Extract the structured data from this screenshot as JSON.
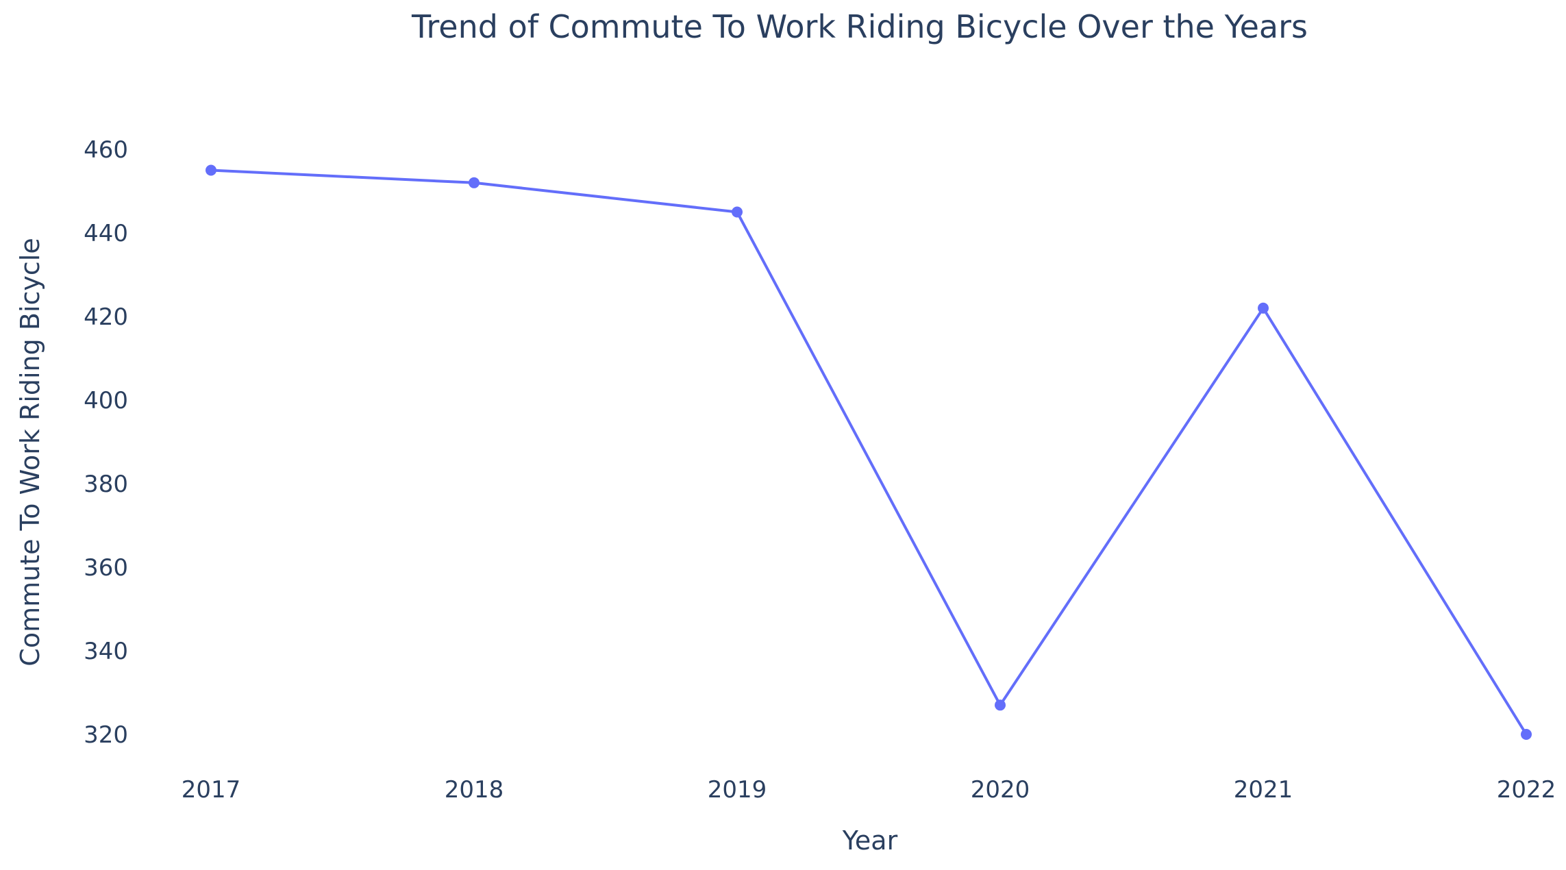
{
  "chart_data": {
    "type": "line",
    "title": "Trend of Commute To Work Riding Bicycle  Over the Years",
    "xlabel": "Year",
    "ylabel": "Commute To Work Riding Bicycle",
    "categories": [
      "2017",
      "2018",
      "2019",
      "2020",
      "2021",
      "2022"
    ],
    "series": [
      {
        "values": [
          455,
          452,
          445,
          327,
          422,
          320
        ],
        "color": "#636efa"
      }
    ],
    "yticks": [
      320,
      340,
      360,
      380,
      400,
      420,
      440,
      460
    ],
    "ylim": [
      315,
      465
    ],
    "grid": false,
    "legend": "none",
    "text_color": "#2a3f5f"
  }
}
